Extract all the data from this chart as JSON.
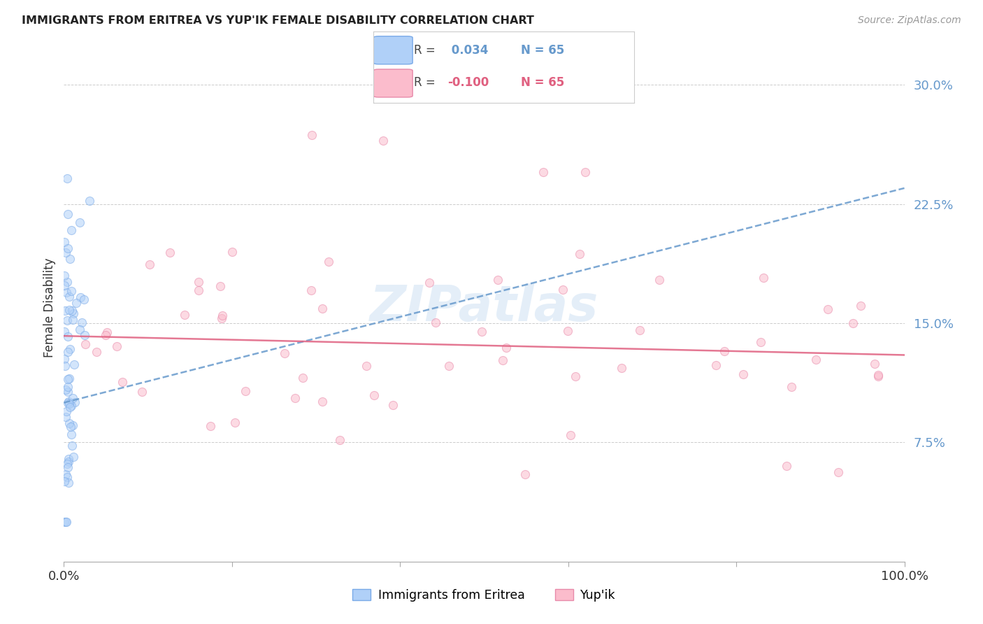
{
  "title": "IMMIGRANTS FROM ERITREA VS YUP'IK FEMALE DISABILITY CORRELATION CHART",
  "source": "Source: ZipAtlas.com",
  "ylabel": "Female Disability",
  "xlim": [
    0.0,
    1.0
  ],
  "ylim": [
    0.0,
    0.32
  ],
  "yticks": [
    0.075,
    0.15,
    0.225,
    0.3
  ],
  "ytick_labels": [
    "7.5%",
    "15.0%",
    "22.5%",
    "30.0%"
  ],
  "xtick_pos": [
    0.0,
    0.2,
    0.4,
    0.6,
    0.8,
    1.0
  ],
  "xtick_labels": [
    "0.0%",
    "",
    "",
    "",
    "",
    "100.0%"
  ],
  "watermark_text": "ZIPatlas",
  "background_color": "#ffffff",
  "grid_color": "#cccccc",
  "blue_face_color": "#b0d0f8",
  "blue_edge_color": "#7aaae8",
  "blue_line_color": "#6699cc",
  "pink_face_color": "#fbbccc",
  "pink_edge_color": "#e88aaa",
  "pink_line_color": "#e06080",
  "R_blue": 0.034,
  "R_pink": -0.1,
  "N": 65,
  "legend_label_blue": "Immigrants from Eritrea",
  "legend_label_pink": "Yup'ik",
  "dot_size": 75,
  "dot_alpha": 0.55,
  "blue_line_x0": 0.0,
  "blue_line_y0": 0.1,
  "blue_line_x1": 1.0,
  "blue_line_y1": 0.235,
  "pink_line_x0": 0.0,
  "pink_line_y0": 0.142,
  "pink_line_x1": 1.0,
  "pink_line_y1": 0.13
}
